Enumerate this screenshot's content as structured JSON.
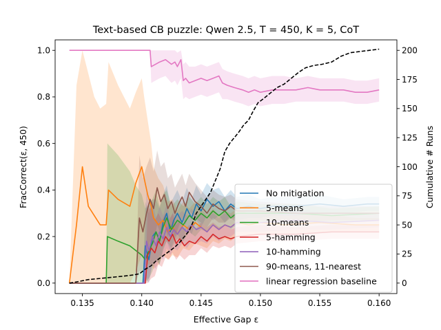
{
  "chart_data": {
    "type": "line",
    "title": "Text-based CB puzzle: Qwen 2.5, T = 450, K = 5, CoT",
    "xlabel": "Effective Gap ε",
    "ylabel": "FracCorrect(ε, 450)",
    "y2label": "Cumulative # Runs",
    "xlim": [
      0.1327,
      0.1615
    ],
    "ylim": [
      -0.045,
      1.045
    ],
    "y2lim": [
      -9.0,
      209.0
    ],
    "x_ticks": [
      0.135,
      0.14,
      0.145,
      0.15,
      0.155,
      0.16
    ],
    "x_tick_labels": [
      "0.135",
      "0.140",
      "0.145",
      "0.150",
      "0.155",
      "0.160"
    ],
    "y_ticks": [
      0.0,
      0.2,
      0.4,
      0.6,
      0.8,
      1.0
    ],
    "y_tick_labels": [
      "0.0",
      "0.2",
      "0.4",
      "0.6",
      "0.8",
      "1.0"
    ],
    "y2_ticks": [
      0,
      25,
      50,
      75,
      100,
      125,
      150,
      175,
      200
    ],
    "y2_tick_labels": [
      "0",
      "25",
      "50",
      "75",
      "100",
      "125",
      "150",
      "175",
      "200"
    ],
    "legend_position": "lower-right",
    "series": [
      {
        "name": "No mitigation",
        "color": "#1f77b4",
        "x": [
          0.1339,
          0.1401,
          0.1403,
          0.1406,
          0.1409,
          0.1412,
          0.1415,
          0.1418,
          0.1421,
          0.1424,
          0.1427,
          0.143,
          0.1434,
          0.1438,
          0.1442,
          0.1446,
          0.145,
          0.1455,
          0.146,
          0.1465,
          0.147,
          0.1475,
          0.148,
          0.149,
          0.15,
          0.151,
          0.153,
          0.155,
          0.157,
          0.159,
          0.16
        ],
        "y": [
          0.0,
          0.0,
          0.16,
          0.1,
          0.2,
          0.22,
          0.18,
          0.26,
          0.3,
          0.22,
          0.27,
          0.3,
          0.26,
          0.32,
          0.28,
          0.34,
          0.31,
          0.36,
          0.33,
          0.35,
          0.31,
          0.34,
          0.32,
          0.33,
          0.32,
          0.33,
          0.33,
          0.34,
          0.33,
          0.34,
          0.34
        ],
        "band_low": [
          0.0,
          0.0,
          0.02,
          0.0,
          0.08,
          0.1,
          0.08,
          0.15,
          0.18,
          0.14,
          0.18,
          0.21,
          0.18,
          0.24,
          0.21,
          0.27,
          0.24,
          0.29,
          0.27,
          0.29,
          0.26,
          0.29,
          0.27,
          0.28,
          0.28,
          0.29,
          0.29,
          0.3,
          0.3,
          0.31,
          0.31
        ],
        "band_high": [
          0.0,
          0.0,
          0.35,
          0.3,
          0.36,
          0.36,
          0.32,
          0.38,
          0.42,
          0.34,
          0.37,
          0.4,
          0.35,
          0.41,
          0.36,
          0.42,
          0.38,
          0.43,
          0.4,
          0.41,
          0.37,
          0.4,
          0.37,
          0.38,
          0.36,
          0.37,
          0.37,
          0.38,
          0.36,
          0.37,
          0.37
        ]
      },
      {
        "name": "5-means",
        "color": "#ff7f0e",
        "x": [
          0.1339,
          0.1345,
          0.135,
          0.1355,
          0.136,
          0.1365,
          0.137,
          0.1372,
          0.138,
          0.139,
          0.1395,
          0.14,
          0.1402,
          0.1405,
          0.1408,
          0.141,
          0.1414,
          0.1418,
          0.1422,
          0.1426,
          0.143,
          0.1435,
          0.144,
          0.1445,
          0.145,
          0.1455,
          0.146,
          0.1465,
          0.147,
          0.1475,
          0.148,
          0.149,
          0.15,
          0.152,
          0.155,
          0.158,
          0.16
        ],
        "y": [
          0.0,
          0.25,
          0.5,
          0.33,
          0.29,
          0.25,
          0.25,
          0.4,
          0.36,
          0.33,
          0.43,
          0.5,
          0.45,
          0.38,
          0.33,
          0.28,
          0.25,
          0.27,
          0.22,
          0.24,
          0.21,
          0.25,
          0.23,
          0.26,
          0.24,
          0.22,
          0.25,
          0.23,
          0.25,
          0.24,
          0.26,
          0.25,
          0.26,
          0.25,
          0.26,
          0.25,
          0.25
        ],
        "band_low": [
          0.0,
          0.0,
          0.0,
          0.0,
          0.0,
          0.0,
          0.0,
          0.0,
          0.0,
          0.0,
          0.05,
          0.12,
          0.1,
          0.08,
          0.08,
          0.06,
          0.08,
          0.12,
          0.1,
          0.12,
          0.11,
          0.15,
          0.14,
          0.17,
          0.16,
          0.15,
          0.18,
          0.17,
          0.19,
          0.18,
          0.2,
          0.2,
          0.21,
          0.21,
          0.22,
          0.22,
          0.22
        ],
        "band_high": [
          0.0,
          0.85,
          1.0,
          0.9,
          0.8,
          0.75,
          0.77,
          0.95,
          0.85,
          0.75,
          0.82,
          0.88,
          0.8,
          0.7,
          0.6,
          0.5,
          0.45,
          0.42,
          0.35,
          0.36,
          0.31,
          0.35,
          0.32,
          0.35,
          0.32,
          0.29,
          0.32,
          0.29,
          0.31,
          0.3,
          0.32,
          0.3,
          0.31,
          0.29,
          0.3,
          0.28,
          0.28
        ]
      },
      {
        "name": "10-means",
        "color": "#2ca02c",
        "x": [
          0.1339,
          0.137,
          0.1371,
          0.138,
          0.139,
          0.1395,
          0.14,
          0.1403,
          0.1406,
          0.1409,
          0.1412,
          0.1415,
          0.1418,
          0.1421,
          0.1425,
          0.143,
          0.1435,
          0.144,
          0.1445,
          0.145,
          0.1455,
          0.146,
          0.1465,
          0.147,
          0.1475,
          0.148,
          0.15,
          0.153,
          0.156,
          0.16
        ],
        "y": [
          0.0,
          0.0,
          0.2,
          0.18,
          0.16,
          0.14,
          0.12,
          0.1,
          0.14,
          0.17,
          0.22,
          0.18,
          0.24,
          0.28,
          0.23,
          0.27,
          0.25,
          0.29,
          0.27,
          0.3,
          0.28,
          0.31,
          0.29,
          0.31,
          0.28,
          0.3,
          0.3,
          0.3,
          0.29,
          0.3
        ],
        "band_low": [
          0.0,
          0.0,
          0.0,
          0.0,
          0.0,
          0.0,
          0.0,
          0.0,
          0.02,
          0.05,
          0.1,
          0.08,
          0.14,
          0.18,
          0.15,
          0.19,
          0.18,
          0.22,
          0.2,
          0.23,
          0.22,
          0.25,
          0.23,
          0.25,
          0.23,
          0.25,
          0.26,
          0.26,
          0.26,
          0.27
        ],
        "band_high": [
          0.0,
          0.0,
          0.6,
          0.55,
          0.48,
          0.42,
          0.38,
          0.32,
          0.34,
          0.36,
          0.4,
          0.33,
          0.38,
          0.4,
          0.33,
          0.36,
          0.33,
          0.37,
          0.34,
          0.37,
          0.34,
          0.37,
          0.35,
          0.37,
          0.33,
          0.35,
          0.34,
          0.34,
          0.32,
          0.33
        ]
      },
      {
        "name": "5-hamming",
        "color": "#d62728",
        "x": [
          0.1339,
          0.1403,
          0.1405,
          0.1408,
          0.1411,
          0.1414,
          0.1417,
          0.142,
          0.1423,
          0.1426,
          0.1429,
          0.1432,
          0.1436,
          0.144,
          0.1445,
          0.145,
          0.1455,
          0.146,
          0.1465,
          0.147,
          0.1475,
          0.148,
          0.15,
          0.153,
          0.156,
          0.16
        ],
        "y": [
          0.0,
          0.0,
          0.12,
          0.15,
          0.13,
          0.18,
          0.16,
          0.2,
          0.18,
          0.21,
          0.17,
          0.19,
          0.16,
          0.18,
          0.17,
          0.2,
          0.18,
          0.21,
          0.19,
          0.2,
          0.19,
          0.2,
          0.21,
          0.21,
          0.22,
          0.22
        ],
        "band_low": [
          0.0,
          0.0,
          0.0,
          0.02,
          0.03,
          0.08,
          0.07,
          0.11,
          0.1,
          0.13,
          0.1,
          0.12,
          0.1,
          0.12,
          0.12,
          0.15,
          0.13,
          0.16,
          0.15,
          0.16,
          0.15,
          0.17,
          0.18,
          0.18,
          0.19,
          0.19
        ],
        "band_high": [
          0.0,
          0.0,
          0.32,
          0.32,
          0.27,
          0.3,
          0.27,
          0.3,
          0.27,
          0.3,
          0.25,
          0.27,
          0.23,
          0.25,
          0.23,
          0.26,
          0.24,
          0.26,
          0.24,
          0.25,
          0.23,
          0.24,
          0.25,
          0.24,
          0.25,
          0.25
        ]
      },
      {
        "name": "10-hamming",
        "color": "#9467bd",
        "x": [
          0.1339,
          0.1402,
          0.1404,
          0.1406,
          0.1409,
          0.1412,
          0.1415,
          0.1418,
          0.1421,
          0.1424,
          0.1427,
          0.143,
          0.1434,
          0.1438,
          0.1442,
          0.1446,
          0.145,
          0.1455,
          0.146,
          0.1465,
          0.147,
          0.1475,
          0.148,
          0.15,
          0.153,
          0.156,
          0.16
        ],
        "y": [
          0.0,
          0.0,
          0.18,
          0.14,
          0.2,
          0.16,
          0.22,
          0.19,
          0.24,
          0.2,
          0.23,
          0.21,
          0.24,
          0.22,
          0.25,
          0.23,
          0.24,
          0.22,
          0.25,
          0.23,
          0.25,
          0.24,
          0.26,
          0.26,
          0.27,
          0.26,
          0.27
        ],
        "band_low": [
          0.0,
          0.0,
          0.02,
          0.02,
          0.08,
          0.06,
          0.12,
          0.1,
          0.15,
          0.12,
          0.15,
          0.14,
          0.17,
          0.15,
          0.18,
          0.17,
          0.18,
          0.17,
          0.2,
          0.18,
          0.2,
          0.2,
          0.22,
          0.22,
          0.23,
          0.23,
          0.24
        ],
        "band_high": [
          0.0,
          0.0,
          0.4,
          0.33,
          0.35,
          0.28,
          0.33,
          0.29,
          0.34,
          0.28,
          0.31,
          0.29,
          0.31,
          0.29,
          0.32,
          0.29,
          0.3,
          0.28,
          0.3,
          0.28,
          0.3,
          0.29,
          0.3,
          0.3,
          0.31,
          0.3,
          0.3
        ]
      },
      {
        "name": "90-means, 11-nearest",
        "color": "#8c564b",
        "x": [
          0.1339,
          0.1395,
          0.1398,
          0.1401,
          0.1404,
          0.1407,
          0.141,
          0.1413,
          0.1416,
          0.1419,
          0.1422,
          0.1425,
          0.1428,
          0.1431,
          0.1434,
          0.1437,
          0.144,
          0.1445,
          0.145,
          0.1455,
          0.146,
          0.1465,
          0.147,
          0.1475,
          0.148,
          0.15,
          0.153,
          0.156,
          0.16
        ],
        "y": [
          0.0,
          0.0,
          0.28,
          0.22,
          0.3,
          0.36,
          0.32,
          0.41,
          0.35,
          0.38,
          0.32,
          0.35,
          0.3,
          0.34,
          0.37,
          0.33,
          0.39,
          0.35,
          0.33,
          0.3,
          0.34,
          0.32,
          0.31,
          0.33,
          0.31,
          0.31,
          0.3,
          0.3,
          0.3
        ],
        "band_low": [
          0.0,
          0.0,
          0.05,
          0.05,
          0.12,
          0.18,
          0.17,
          0.25,
          0.21,
          0.25,
          0.2,
          0.24,
          0.2,
          0.24,
          0.28,
          0.25,
          0.31,
          0.28,
          0.26,
          0.24,
          0.28,
          0.26,
          0.26,
          0.28,
          0.26,
          0.27,
          0.26,
          0.27,
          0.27
        ],
        "band_high": [
          0.0,
          0.0,
          0.55,
          0.45,
          0.5,
          0.54,
          0.48,
          0.57,
          0.5,
          0.52,
          0.45,
          0.47,
          0.41,
          0.44,
          0.47,
          0.42,
          0.47,
          0.43,
          0.4,
          0.37,
          0.4,
          0.38,
          0.37,
          0.38,
          0.36,
          0.35,
          0.34,
          0.33,
          0.33
        ]
      },
      {
        "name": "linear regression baseline",
        "color": "#e377c2",
        "x": [
          0.1339,
          0.1407,
          0.1408,
          0.1415,
          0.142,
          0.1425,
          0.1428,
          0.143,
          0.1433,
          0.1435,
          0.1437,
          0.144,
          0.1445,
          0.145,
          0.1455,
          0.146,
          0.1465,
          0.1468,
          0.1472,
          0.1478,
          0.1485,
          0.149,
          0.1495,
          0.15,
          0.151,
          0.152,
          0.153,
          0.154,
          0.155,
          0.156,
          0.157,
          0.158,
          0.159,
          0.16
        ],
        "y": [
          1.0,
          1.0,
          0.93,
          0.95,
          0.96,
          0.94,
          0.95,
          0.93,
          0.96,
          0.87,
          0.88,
          0.86,
          0.87,
          0.88,
          0.87,
          0.88,
          0.89,
          0.86,
          0.85,
          0.84,
          0.83,
          0.82,
          0.83,
          0.82,
          0.83,
          0.83,
          0.83,
          0.84,
          0.83,
          0.83,
          0.83,
          0.82,
          0.82,
          0.83
        ],
        "band_low": [
          1.0,
          1.0,
          0.86,
          0.88,
          0.89,
          0.86,
          0.87,
          0.85,
          0.88,
          0.79,
          0.8,
          0.79,
          0.8,
          0.81,
          0.8,
          0.81,
          0.82,
          0.79,
          0.79,
          0.78,
          0.77,
          0.76,
          0.77,
          0.76,
          0.77,
          0.77,
          0.78,
          0.78,
          0.78,
          0.78,
          0.78,
          0.77,
          0.77,
          0.78
        ],
        "band_high": [
          1.0,
          1.0,
          1.0,
          1.0,
          1.0,
          1.0,
          1.0,
          0.99,
          1.0,
          0.94,
          0.95,
          0.93,
          0.93,
          0.94,
          0.93,
          0.94,
          0.95,
          0.92,
          0.91,
          0.9,
          0.89,
          0.88,
          0.89,
          0.88,
          0.89,
          0.89,
          0.88,
          0.89,
          0.88,
          0.88,
          0.88,
          0.87,
          0.87,
          0.88
        ]
      }
    ],
    "cumulative_runs": {
      "name": "Cumulative # Runs",
      "color": "#000000",
      "axis": "right",
      "style": "dashed",
      "x": [
        0.1339,
        0.1345,
        0.1355,
        0.1365,
        0.1375,
        0.1385,
        0.1393,
        0.1398,
        0.1403,
        0.1408,
        0.1412,
        0.1416,
        0.142,
        0.1424,
        0.1428,
        0.1432,
        0.1436,
        0.144,
        0.1443,
        0.1446,
        0.145,
        0.1454,
        0.1458,
        0.1462,
        0.1466,
        0.147,
        0.1474,
        0.1478,
        0.1482,
        0.1486,
        0.149,
        0.1494,
        0.1498,
        0.1502,
        0.1508,
        0.1514,
        0.152,
        0.1526,
        0.1532,
        0.1538,
        0.1545,
        0.1552,
        0.156,
        0.1568,
        0.1576,
        0.1584,
        0.1592,
        0.16
      ],
      "y": [
        0,
        1,
        3,
        4,
        5,
        6,
        7,
        8,
        12,
        15,
        19,
        22,
        25,
        28,
        31,
        35,
        40,
        45,
        52,
        60,
        66,
        72,
        78,
        88,
        98,
        113,
        120,
        125,
        130,
        136,
        140,
        148,
        155,
        158,
        163,
        168,
        171,
        176,
        181,
        185,
        187,
        188,
        190,
        195,
        198,
        199,
        200,
        201
      ]
    }
  }
}
